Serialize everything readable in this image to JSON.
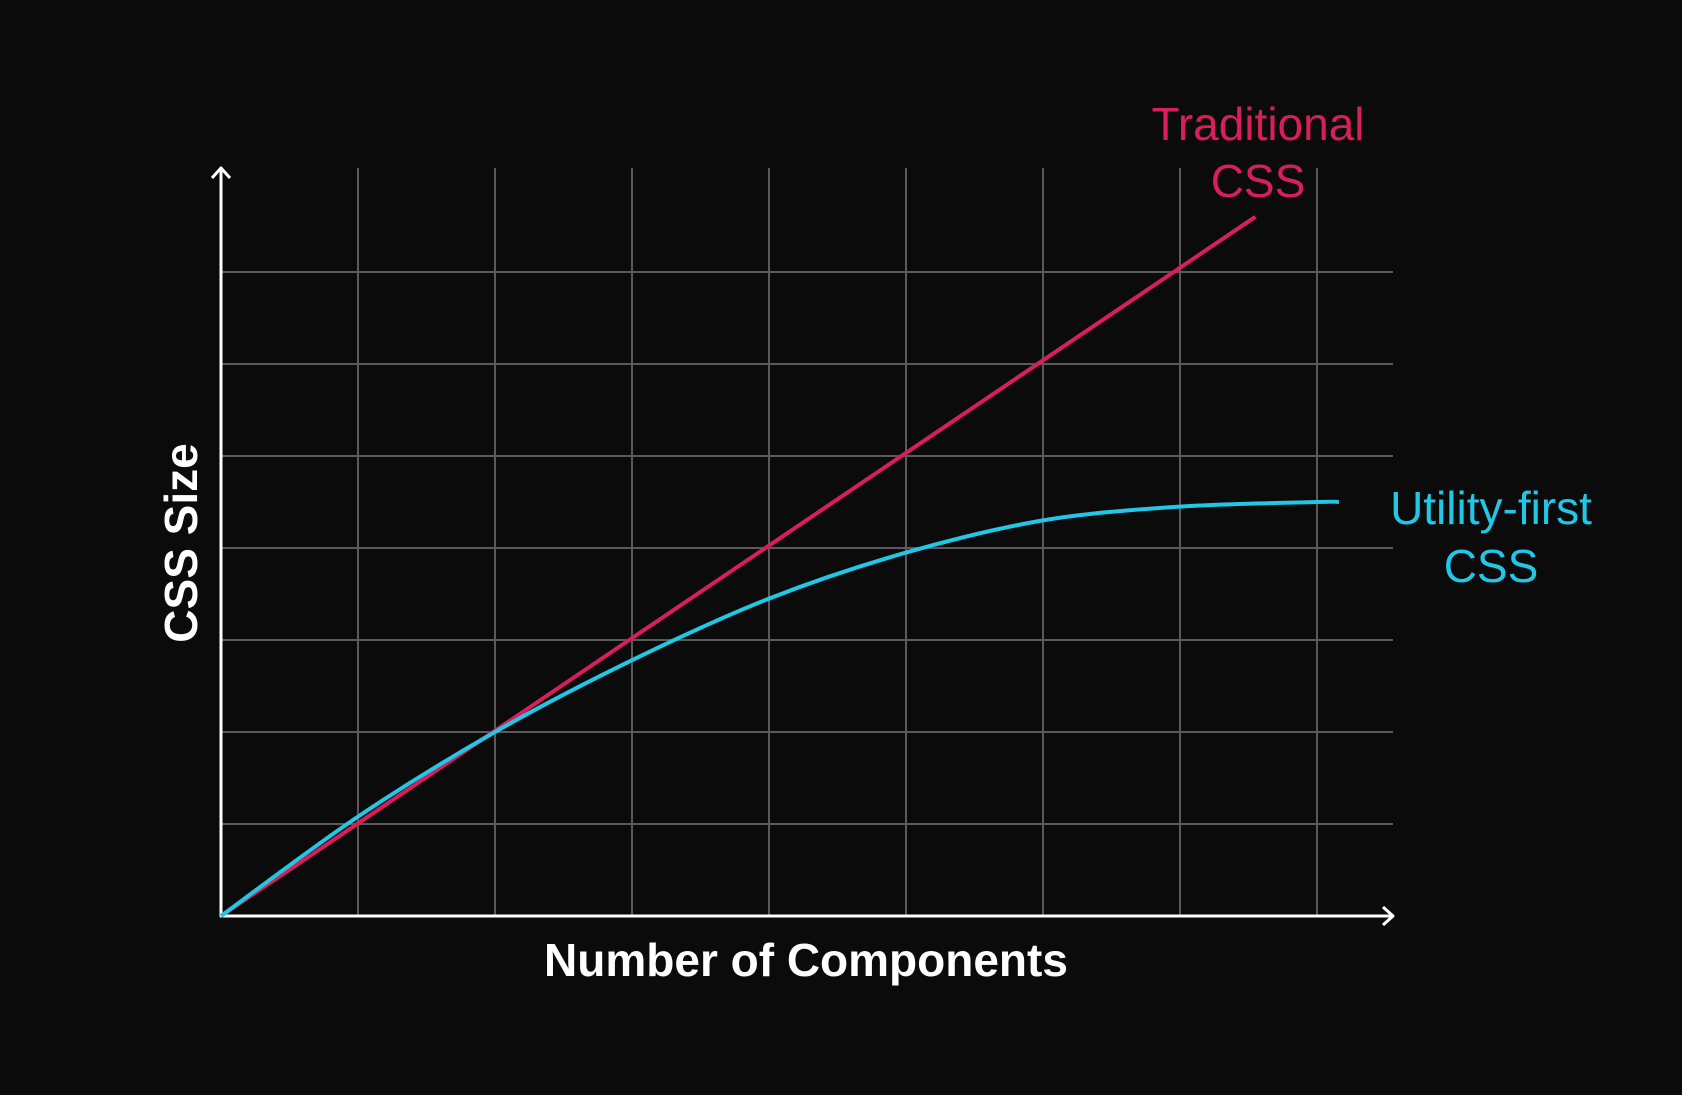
{
  "colors": {
    "background": "#0b0b0c",
    "grid": "#5a5a5c",
    "axis": "#ffffff",
    "traditional": "#d81e5b",
    "utility": "#22c7e6"
  },
  "chart_data": {
    "type": "line",
    "xlabel": "Number of Components",
    "ylabel": "CSS Size",
    "xlim": [
      0,
      8.5
    ],
    "ylim": [
      0,
      8.2
    ],
    "x_ticks": [
      1,
      2,
      3,
      4,
      5,
      6,
      7,
      8
    ],
    "y_ticks": [
      1,
      2,
      3,
      4,
      5,
      6,
      7
    ],
    "grid": true,
    "legend": "inline labels at line ends",
    "series": [
      {
        "name": "Traditional CSS",
        "label_lines": [
          "Traditional",
          "CSS"
        ],
        "color": "#d81e5b",
        "x": [
          0,
          7.55
        ],
        "y": [
          0,
          7.6
        ]
      },
      {
        "name": "Utility-first CSS",
        "label_lines": [
          "Utility-first",
          "CSS"
        ],
        "color": "#22c7e6",
        "x": [
          0,
          1,
          2,
          3,
          4,
          5,
          6,
          7,
          8,
          8.16
        ],
        "y": [
          0,
          1.08,
          2.0,
          2.78,
          3.45,
          3.95,
          4.3,
          4.45,
          4.5,
          4.5
        ]
      }
    ]
  }
}
